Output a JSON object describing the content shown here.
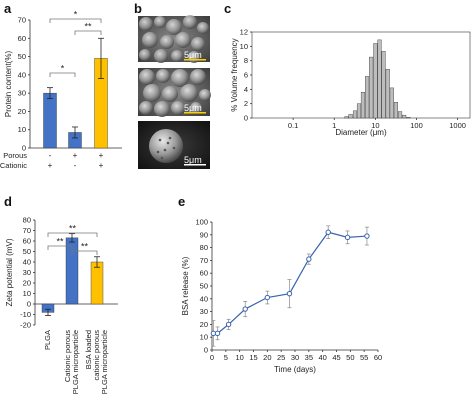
{
  "panels": {
    "a": "a",
    "b": "b",
    "c": "c",
    "d": "d",
    "e": "e"
  },
  "chart_data": [
    {
      "id": "a",
      "type": "bar",
      "ylabel": "Protein content(%)",
      "ylim": [
        0,
        70
      ],
      "yticks": [
        "0",
        "10",
        "20",
        "30",
        "40",
        "50",
        "60",
        "70"
      ],
      "ytick_values": [
        0,
        10,
        20,
        30,
        40,
        50,
        60,
        70
      ],
      "categories": [
        {
          "porous": "-",
          "cationic": "+"
        },
        {
          "porous": "+",
          "cationic": "-"
        },
        {
          "porous": "+",
          "cationic": "+"
        }
      ],
      "row_labels": [
        "Porous",
        "Cationic"
      ],
      "values": [
        30,
        8.5,
        49
      ],
      "errors": [
        3,
        3,
        11
      ],
      "colors": [
        "#4472C4",
        "#4472C4",
        "#FFC000"
      ],
      "significance": [
        "*",
        "*",
        "**"
      ]
    },
    {
      "id": "b",
      "type": "image",
      "scale_labels": [
        "5μm",
        "5μm",
        "5μm"
      ]
    },
    {
      "id": "c",
      "type": "bar",
      "ylabel": "% Volume frequency",
      "xlabel": "Diameter (μm)",
      "xscale": "log",
      "xlim": [
        0.01,
        2000
      ],
      "xticks": [
        "0.1",
        "1",
        "10",
        "100",
        "1000"
      ],
      "xtick_values": [
        0.1,
        1,
        10,
        100,
        1000
      ],
      "ylim": [
        0,
        12
      ],
      "yticks": [
        "0",
        "2",
        "4",
        "6",
        "8",
        "10",
        "12"
      ],
      "ytick_values": [
        0,
        2,
        4,
        6,
        8,
        10,
        12
      ],
      "x": [
        2.0,
        2.5,
        3.2,
        4.0,
        5.0,
        6.3,
        7.9,
        10.0,
        12.6,
        15.8,
        20.0,
        25.1,
        31.6,
        39.8,
        50.1,
        63.1
      ],
      "values": [
        0.2,
        0.5,
        1.0,
        2.0,
        3.6,
        5.8,
        8.5,
        10.4,
        10.9,
        9.3,
        6.8,
        4.2,
        2.2,
        0.9,
        0.4,
        0.1
      ]
    },
    {
      "id": "d",
      "type": "bar",
      "ylabel": "Zeta potential (mV)",
      "ylim": [
        -20,
        80
      ],
      "yticks": [
        "-20",
        "-10",
        "0",
        "10",
        "20",
        "30",
        "40",
        "50",
        "60",
        "70",
        "80"
      ],
      "ytick_values": [
        -20,
        -10,
        0,
        10,
        20,
        30,
        40,
        50,
        60,
        70,
        80
      ],
      "categories": [
        "PLGA",
        "Cationic porous PLGA microparticle",
        "BSA loaded cationic porous PLGA microparticle"
      ],
      "category_lines": [
        [
          "PLGA"
        ],
        [
          "Cationic porous",
          "PLGA microparticle"
        ],
        [
          "BSA loaded",
          "cationic porous",
          "PLGA microparticle"
        ]
      ],
      "values": [
        -8,
        63,
        40
      ],
      "errors": [
        3,
        4,
        5
      ],
      "colors": [
        "#4472C4",
        "#4472C4",
        "#FFC000"
      ],
      "significance": [
        "**",
        "**",
        "**"
      ]
    },
    {
      "id": "e",
      "type": "line",
      "ylabel": "BSA release (%)",
      "xlabel": "Time (days)",
      "xlim": [
        0,
        60
      ],
      "ylim": [
        0,
        100
      ],
      "xticks": [
        "0",
        "5",
        "10",
        "15",
        "20",
        "25",
        "30",
        "35",
        "40",
        "45",
        "50",
        "55",
        "60"
      ],
      "xtick_values": [
        0,
        5,
        10,
        15,
        20,
        25,
        30,
        35,
        40,
        45,
        50,
        55,
        60
      ],
      "yticks": [
        "0",
        "10",
        "20",
        "30",
        "40",
        "50",
        "60",
        "70",
        "80",
        "90",
        "100"
      ],
      "ytick_values": [
        0,
        10,
        20,
        30,
        40,
        50,
        60,
        70,
        80,
        90,
        100
      ],
      "x": [
        0.5,
        2,
        6,
        12,
        20,
        28,
        35,
        42,
        49,
        56
      ],
      "values": [
        13,
        13,
        20,
        32,
        41,
        44,
        71,
        92,
        88,
        89
      ],
      "errors": [
        10,
        5,
        4,
        6,
        5,
        11,
        4,
        5,
        5,
        7
      ],
      "color": "#3B63AE"
    }
  ]
}
